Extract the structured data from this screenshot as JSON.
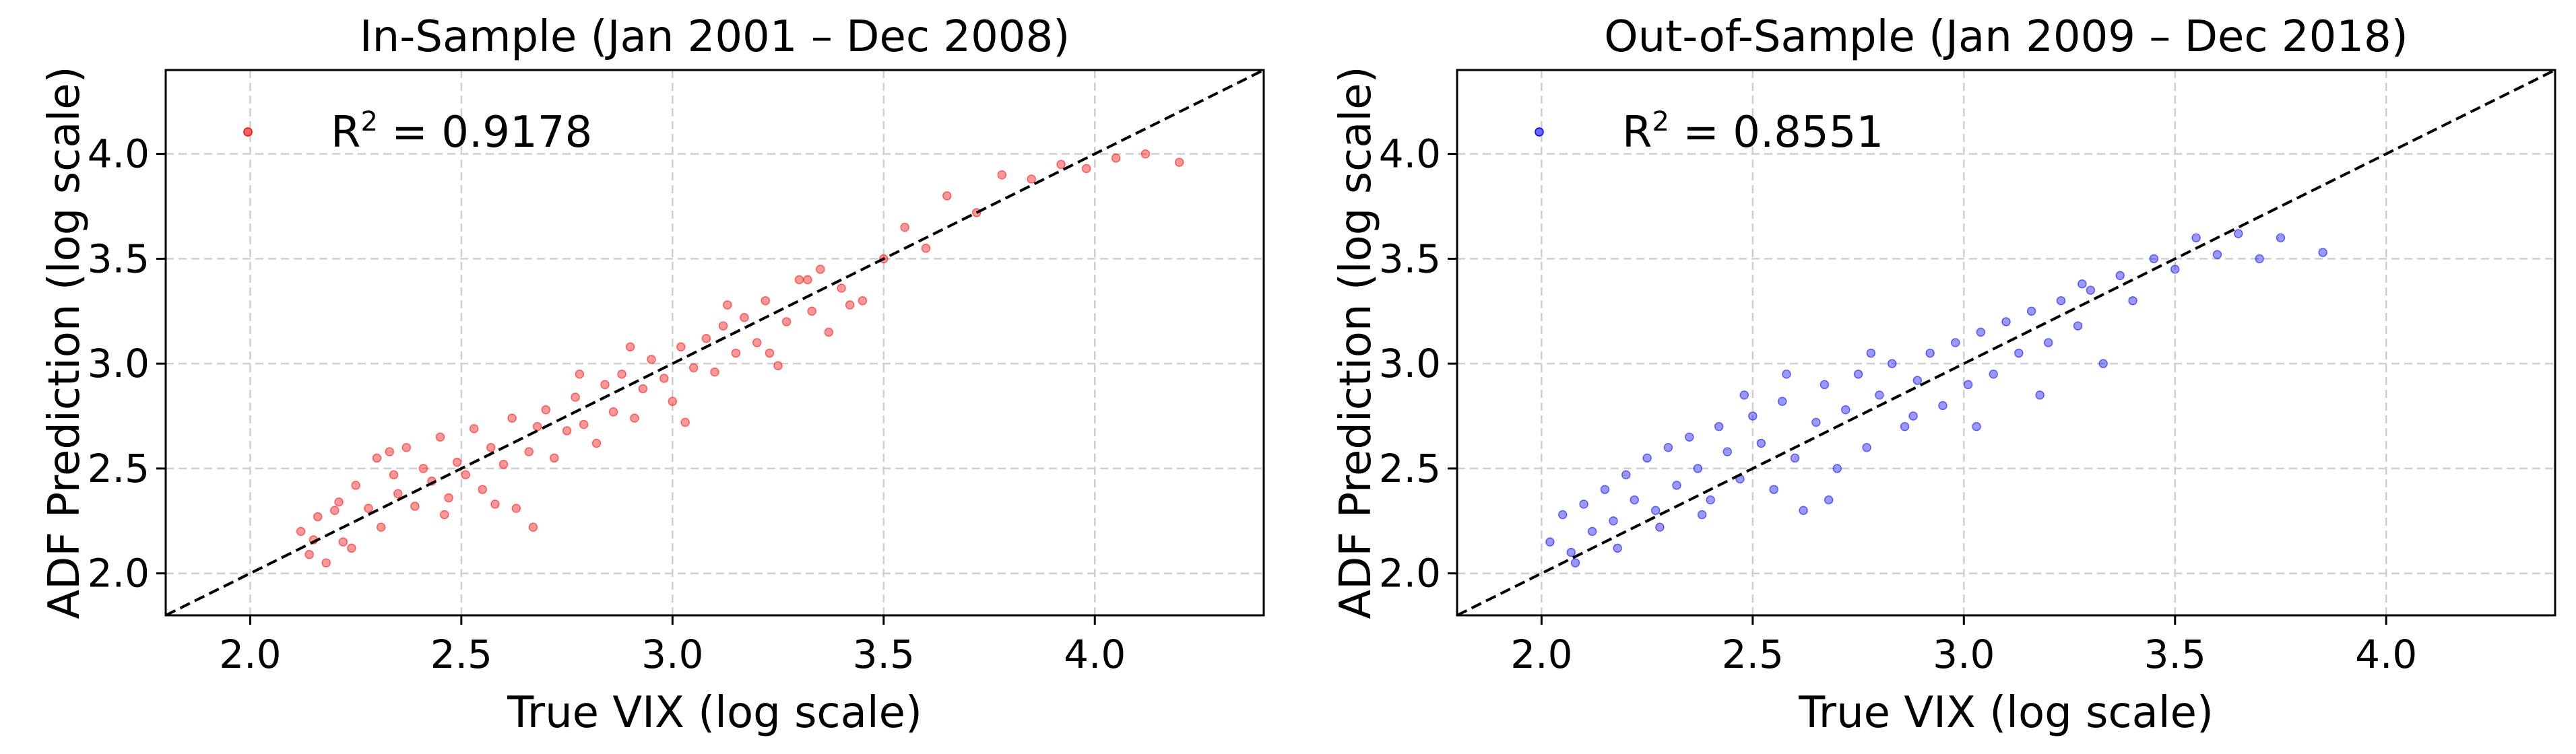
{
  "chart_data": [
    {
      "type": "scatter",
      "title": "In-Sample (Jan 2001 – Dec 2008)",
      "xlabel": "True VIX (log scale)",
      "ylabel": "ADF Prediction (log scale)",
      "xlim": [
        1.8,
        4.4
      ],
      "ylim": [
        1.8,
        4.4
      ],
      "xticks": [
        2.0,
        2.5,
        3.0,
        3.5,
        4.0
      ],
      "yticks": [
        2.0,
        2.5,
        3.0,
        3.5,
        4.0
      ],
      "xtick_labels": [
        "2.0",
        "2.5",
        "3.0",
        "3.5",
        "4.0"
      ],
      "ytick_labels": [
        "2.0",
        "2.5",
        "3.0",
        "3.5",
        "4.0"
      ],
      "grid": true,
      "reference_line": "y = x (dashed)",
      "legend": {
        "placement": "top-left",
        "label": "R",
        "superscript": "2",
        "value_text": " = 0.9178"
      },
      "r_squared": 0.9178,
      "color": "#ff0000",
      "point_opacity": 0.4,
      "points": [
        [
          2.12,
          2.2
        ],
        [
          2.14,
          2.09
        ],
        [
          2.15,
          2.16
        ],
        [
          2.16,
          2.27
        ],
        [
          2.18,
          2.05
        ],
        [
          2.2,
          2.3
        ],
        [
          2.21,
          2.34
        ],
        [
          2.22,
          2.15
        ],
        [
          2.25,
          2.42
        ],
        [
          2.28,
          2.31
        ],
        [
          2.3,
          2.55
        ],
        [
          2.31,
          2.22
        ],
        [
          2.34,
          2.47
        ],
        [
          2.35,
          2.38
        ],
        [
          2.37,
          2.6
        ],
        [
          2.39,
          2.32
        ],
        [
          2.41,
          2.5
        ],
        [
          2.43,
          2.44
        ],
        [
          2.45,
          2.65
        ],
        [
          2.47,
          2.36
        ],
        [
          2.49,
          2.53
        ],
        [
          2.51,
          2.47
        ],
        [
          2.53,
          2.69
        ],
        [
          2.55,
          2.4
        ],
        [
          2.57,
          2.6
        ],
        [
          2.6,
          2.52
        ],
        [
          2.62,
          2.74
        ],
        [
          2.63,
          2.31
        ],
        [
          2.66,
          2.58
        ],
        [
          2.68,
          2.7
        ],
        [
          2.7,
          2.78
        ],
        [
          2.72,
          2.55
        ],
        [
          2.75,
          2.68
        ],
        [
          2.77,
          2.84
        ],
        [
          2.79,
          2.71
        ],
        [
          2.82,
          2.62
        ],
        [
          2.84,
          2.9
        ],
        [
          2.86,
          2.77
        ],
        [
          2.88,
          2.95
        ],
        [
          2.91,
          2.74
        ],
        [
          2.93,
          2.88
        ],
        [
          2.95,
          3.02
        ],
        [
          2.98,
          2.93
        ],
        [
          3.0,
          2.82
        ],
        [
          3.02,
          3.08
        ],
        [
          3.05,
          2.98
        ],
        [
          3.08,
          3.12
        ],
        [
          3.1,
          2.96
        ],
        [
          3.12,
          3.18
        ],
        [
          3.15,
          3.05
        ],
        [
          3.17,
          3.22
        ],
        [
          3.2,
          3.1
        ],
        [
          3.22,
          3.3
        ],
        [
          3.25,
          2.99
        ],
        [
          3.27,
          3.2
        ],
        [
          3.3,
          3.4
        ],
        [
          3.33,
          3.25
        ],
        [
          3.35,
          3.45
        ],
        [
          3.37,
          3.15
        ],
        [
          3.4,
          3.36
        ],
        [
          3.45,
          3.3
        ],
        [
          3.5,
          3.5
        ],
        [
          3.55,
          3.65
        ],
        [
          3.6,
          3.55
        ],
        [
          3.65,
          3.8
        ],
        [
          3.72,
          3.72
        ],
        [
          3.78,
          3.9
        ],
        [
          3.85,
          3.88
        ],
        [
          3.92,
          3.95
        ],
        [
          3.98,
          3.93
        ],
        [
          4.05,
          3.98
        ],
        [
          4.12,
          4.0
        ],
        [
          4.2,
          3.96
        ],
        [
          2.24,
          2.12
        ],
        [
          2.33,
          2.58
        ],
        [
          2.46,
          2.28
        ],
        [
          2.58,
          2.33
        ],
        [
          2.67,
          2.22
        ],
        [
          2.78,
          2.95
        ],
        [
          2.9,
          3.08
        ],
        [
          3.03,
          2.72
        ],
        [
          3.13,
          3.28
        ],
        [
          3.23,
          3.05
        ],
        [
          3.32,
          3.4
        ],
        [
          3.42,
          3.28
        ]
      ]
    },
    {
      "type": "scatter",
      "title": "Out-of-Sample (Jan 2009 – Dec 2018)",
      "xlabel": "True VIX (log scale)",
      "ylabel": "ADF Prediction (log scale)",
      "xlim": [
        1.8,
        4.4
      ],
      "ylim": [
        1.8,
        4.4
      ],
      "xticks": [
        2.0,
        2.5,
        3.0,
        3.5,
        4.0
      ],
      "yticks": [
        2.0,
        2.5,
        3.0,
        3.5,
        4.0
      ],
      "xtick_labels": [
        "2.0",
        "2.5",
        "3.0",
        "3.5",
        "4.0"
      ],
      "ytick_labels": [
        "2.0",
        "2.5",
        "3.0",
        "3.5",
        "4.0"
      ],
      "grid": true,
      "reference_line": "y = x (dashed)",
      "legend": {
        "placement": "top-left",
        "label": "R",
        "superscript": "2",
        "value_text": " = 0.8551"
      },
      "r_squared": 0.8551,
      "color": "#0000ff",
      "point_opacity": 0.4,
      "points": [
        [
          2.02,
          2.15
        ],
        [
          2.05,
          2.28
        ],
        [
          2.07,
          2.1
        ],
        [
          2.1,
          2.33
        ],
        [
          2.12,
          2.2
        ],
        [
          2.15,
          2.4
        ],
        [
          2.17,
          2.25
        ],
        [
          2.2,
          2.47
        ],
        [
          2.22,
          2.35
        ],
        [
          2.25,
          2.55
        ],
        [
          2.27,
          2.3
        ],
        [
          2.3,
          2.6
        ],
        [
          2.32,
          2.42
        ],
        [
          2.35,
          2.65
        ],
        [
          2.37,
          2.5
        ],
        [
          2.4,
          2.35
        ],
        [
          2.42,
          2.7
        ],
        [
          2.44,
          2.58
        ],
        [
          2.47,
          2.45
        ],
        [
          2.5,
          2.75
        ],
        [
          2.52,
          2.62
        ],
        [
          2.55,
          2.4
        ],
        [
          2.57,
          2.82
        ],
        [
          2.6,
          2.55
        ],
        [
          2.62,
          2.3
        ],
        [
          2.65,
          2.72
        ],
        [
          2.67,
          2.9
        ],
        [
          2.7,
          2.5
        ],
        [
          2.72,
          2.78
        ],
        [
          2.75,
          2.95
        ],
        [
          2.77,
          2.6
        ],
        [
          2.8,
          2.85
        ],
        [
          2.83,
          3.0
        ],
        [
          2.86,
          2.7
        ],
        [
          2.89,
          2.92
        ],
        [
          2.92,
          3.05
        ],
        [
          2.95,
          2.8
        ],
        [
          2.98,
          3.1
        ],
        [
          3.01,
          2.9
        ],
        [
          3.04,
          3.15
        ],
        [
          3.07,
          2.95
        ],
        [
          3.1,
          3.2
        ],
        [
          3.13,
          3.05
        ],
        [
          3.16,
          3.25
        ],
        [
          3.2,
          3.1
        ],
        [
          3.23,
          3.3
        ],
        [
          3.27,
          3.18
        ],
        [
          3.3,
          3.35
        ],
        [
          3.33,
          3.0
        ],
        [
          3.37,
          3.42
        ],
        [
          3.4,
          3.3
        ],
        [
          3.45,
          3.5
        ],
        [
          3.5,
          3.45
        ],
        [
          3.55,
          3.6
        ],
        [
          3.6,
          3.52
        ],
        [
          3.65,
          3.62
        ],
        [
          3.7,
          3.5
        ],
        [
          3.75,
          3.6
        ],
        [
          3.85,
          3.53
        ],
        [
          2.08,
          2.05
        ],
        [
          2.18,
          2.12
        ],
        [
          2.28,
          2.22
        ],
        [
          2.38,
          2.28
        ],
        [
          2.48,
          2.85
        ],
        [
          2.58,
          2.95
        ],
        [
          2.68,
          2.35
        ],
        [
          2.78,
          3.05
        ],
        [
          2.88,
          2.75
        ],
        [
          3.03,
          2.7
        ],
        [
          3.18,
          2.85
        ],
        [
          3.28,
          3.38
        ]
      ]
    }
  ]
}
